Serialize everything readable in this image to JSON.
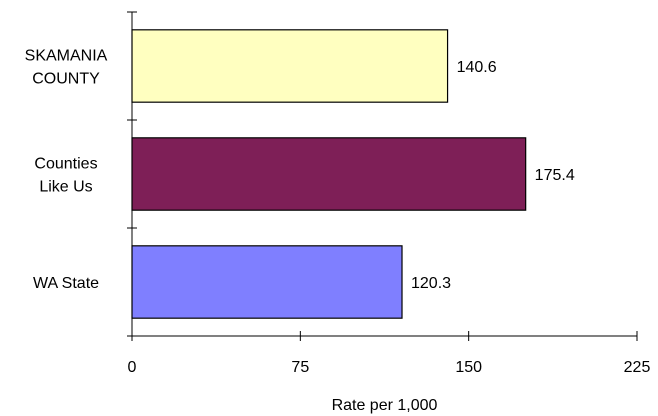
{
  "chart_data": {
    "type": "bar",
    "orientation": "horizontal",
    "title": "",
    "xlabel": "Rate per 1,000",
    "ylabel": "",
    "xlim": [
      0,
      225
    ],
    "xticks": [
      0,
      75,
      150,
      225
    ],
    "grid": false,
    "legend": "none",
    "categories": [
      [
        "SKAMANIA",
        "COUNTY"
      ],
      [
        "Counties",
        "Like Us"
      ],
      [
        "WA State"
      ]
    ],
    "values": [
      140.6,
      175.4,
      120.3
    ],
    "value_labels": [
      "140.6",
      "175.4",
      "120.3"
    ],
    "colors": [
      "#FFFFC0",
      "#7E1F57",
      "#7F7FFF"
    ]
  }
}
